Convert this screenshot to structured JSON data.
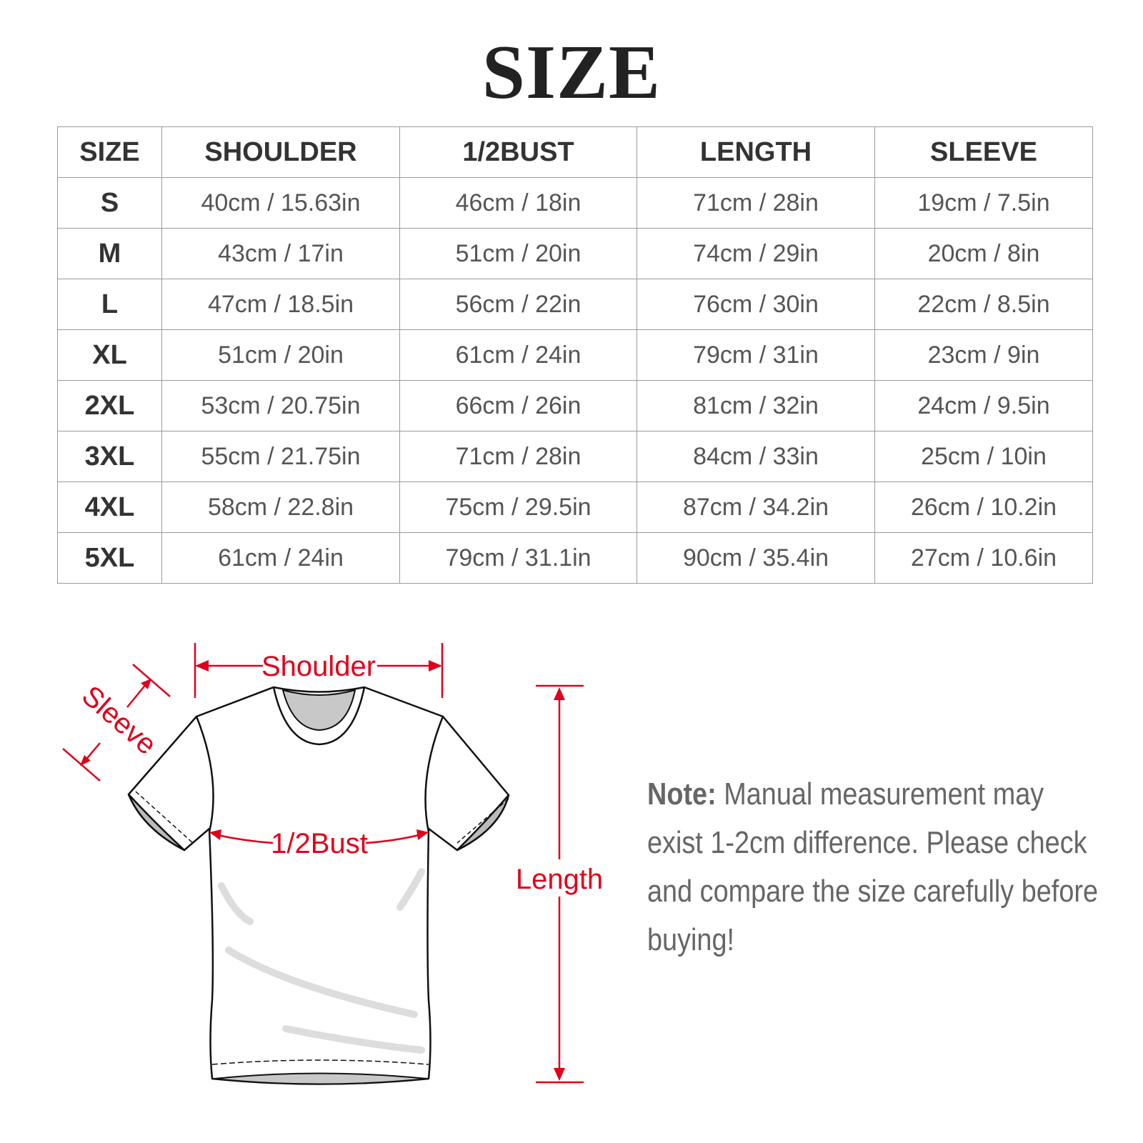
{
  "title": "SIZE",
  "table": {
    "headers": [
      "SIZE",
      "SHOULDER",
      "1/2BUST",
      "LENGTH",
      "SLEEVE"
    ],
    "rows": [
      [
        "S",
        "40cm / 15.63in",
        "46cm / 18in",
        "71cm / 28in",
        "19cm / 7.5in"
      ],
      [
        "M",
        "43cm / 17in",
        "51cm / 20in",
        "74cm / 29in",
        "20cm / 8in"
      ],
      [
        "L",
        "47cm / 18.5in",
        "56cm / 22in",
        "76cm / 30in",
        "22cm / 8.5in"
      ],
      [
        "XL",
        "51cm / 20in",
        "61cm / 24in",
        "79cm / 31in",
        "23cm / 9in"
      ],
      [
        "2XL",
        "53cm / 20.75in",
        "66cm / 26in",
        "81cm / 32in",
        "24cm / 9.5in"
      ],
      [
        "3XL",
        "55cm / 21.75in",
        "71cm / 28in",
        "84cm / 33in",
        "25cm / 10in"
      ],
      [
        "4XL",
        "58cm / 22.8in",
        "75cm / 29.5in",
        "87cm / 34.2in",
        "26cm / 10.2in"
      ],
      [
        "5XL",
        "61cm / 24in",
        "79cm / 31.1in",
        "90cm / 35.4in",
        "27cm / 10.6in"
      ]
    ]
  },
  "diagram": {
    "shoulder_label": "Shoulder",
    "sleeve_label": "Sleeve",
    "bust_label": "1/2Bust",
    "length_label": "Length",
    "accent_color": "#e0001b"
  },
  "note": {
    "label": "Note:",
    "text": " Manual measurement may exist 1-2cm difference. Please check and compare the size carefully before buying!"
  }
}
